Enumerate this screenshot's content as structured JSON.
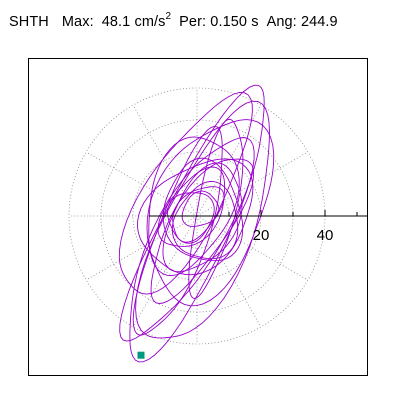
{
  "header": {
    "station": "SHTH",
    "max_label": "Max:",
    "max_value": "48.1",
    "max_unit": "cm/s",
    "max_unit_exp": "2",
    "period_label": "Per:",
    "period_value": "0.150 s",
    "angle_label": "Ang:",
    "angle_value": "244.9"
  },
  "colors": {
    "trace": "#9900cc",
    "end_marker": "#009980",
    "axis": "#000000",
    "grid": "#888888"
  },
  "chart_data": {
    "type": "scatter",
    "description_note": "",
    "axis": {
      "ring_step": 10,
      "ring_count": 4,
      "tick_labels": [
        {
          "value": 20,
          "text": "20"
        },
        {
          "value": 40,
          "text": "40"
        }
      ],
      "x_range": [
        -48.1,
        48.1
      ],
      "y_range": [
        -48.1,
        48.1
      ]
    },
    "grid": "dotted-polar",
    "end_point": {
      "x": -17.5,
      "y": -43.5
    }
  }
}
